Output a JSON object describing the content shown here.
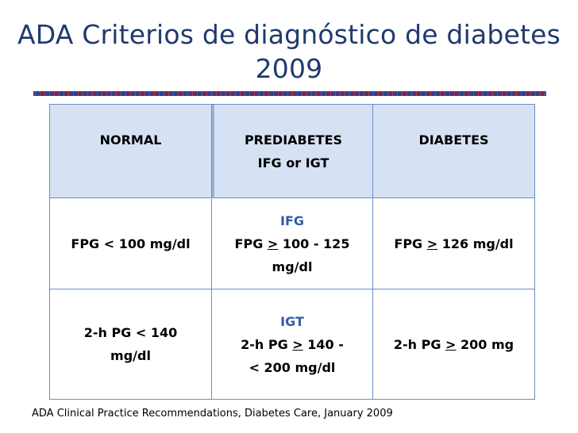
{
  "title": {
    "line1": "ADA Criterios de diagnóstico de diabetes",
    "line2": "2009"
  },
  "table": {
    "headers": {
      "normal": "NORMAL",
      "prediabetes": "PREDIABETES",
      "prediabetes_sub": "IFG or IGT",
      "diabetes": "DIABETES"
    },
    "row_fpg": {
      "normal": "FPG < 100 mg/dl",
      "ifg_label": "IFG",
      "pre_prefix": "FPG ",
      "pre_sym": ">",
      "pre_value": " 100 - 125",
      "pre_unit": "mg/dl",
      "diab_prefix": "FPG ",
      "diab_sym": ">",
      "diab_value": " 126 mg/dl"
    },
    "row_pg": {
      "normal_line1": "2-h PG < 140",
      "normal_line2": "mg/dl",
      "igt_label": "IGT",
      "pre_prefix": "2-h PG ",
      "pre_sym": ">",
      "pre_value": " 140 -",
      "pre_line2": "< 200 mg/dl",
      "diab_prefix": "2-h PG ",
      "diab_sym": ">",
      "diab_value": " 200 mg"
    }
  },
  "footer": "ADA Clinical Practice Recommendations, Diabetes Care, January 2009",
  "colors": {
    "title": "#1f3a6e",
    "header_bg": "#d6e2f3",
    "border": "#6b8fc7",
    "sub_label": "#2e5ca8"
  }
}
